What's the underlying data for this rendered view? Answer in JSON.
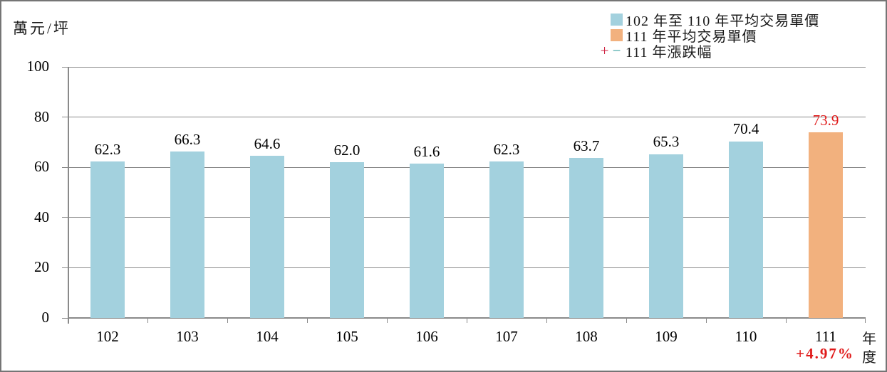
{
  "y_axis": {
    "unit_label": "萬元/坪",
    "tick_labels": [
      "100",
      "80",
      "60",
      "40",
      "20",
      "0"
    ]
  },
  "x_axis": {
    "title": "年度",
    "tick_labels": [
      "102",
      "103",
      "104",
      "105",
      "106",
      "107",
      "108",
      "109",
      "110",
      "111"
    ]
  },
  "legend": {
    "items": [
      {
        "label": "102 年至 110 年平均交易單價",
        "swatch_color": "#A3D1DE"
      },
      {
        "label": "111 年平均交易單價",
        "swatch_color": "#F2B17E"
      },
      {
        "label": "111 年漲跌幅",
        "plus": "+",
        "minus": "−",
        "plus_color": "#CE2140",
        "minus_color": "#2E9B9B"
      }
    ]
  },
  "annotations": {
    "change_label": "+4.97%",
    "change_color": "#E01A1A"
  },
  "chart_data": {
    "type": "bar",
    "title": "",
    "xlabel": "年度",
    "ylabel": "萬元/坪",
    "categories": [
      "102",
      "103",
      "104",
      "105",
      "106",
      "107",
      "108",
      "109",
      "110",
      "111"
    ],
    "values": [
      62.3,
      66.3,
      64.6,
      62.0,
      61.6,
      62.3,
      63.7,
      65.3,
      70.4,
      73.9
    ],
    "value_labels": [
      "62.3",
      "66.3",
      "64.6",
      "62.0",
      "61.6",
      "62.3",
      "63.7",
      "65.3",
      "70.4",
      "73.9"
    ],
    "highlight_index": 9,
    "bar_colors": {
      "default": "#A3D1DE",
      "highlight": "#F2B17E"
    },
    "label_colors": {
      "default": "#000000",
      "highlight": "#E01A1A"
    },
    "ylim": [
      0,
      100
    ],
    "yticks": [
      100,
      80,
      60,
      40,
      20,
      0
    ],
    "grid": true,
    "legend_position": "top-right",
    "series": [
      {
        "name": "102 年至 110 年平均交易單價",
        "values": [
          62.3,
          66.3,
          64.6,
          62.0,
          61.6,
          62.3,
          63.7,
          65.3,
          70.4,
          null
        ]
      },
      {
        "name": "111 年平均交易單價",
        "values": [
          null,
          null,
          null,
          null,
          null,
          null,
          null,
          null,
          null,
          73.9
        ]
      },
      {
        "name": "111 年漲跌幅",
        "values": [
          null,
          null,
          null,
          null,
          null,
          null,
          null,
          null,
          null,
          "+4.97%"
        ]
      }
    ]
  }
}
